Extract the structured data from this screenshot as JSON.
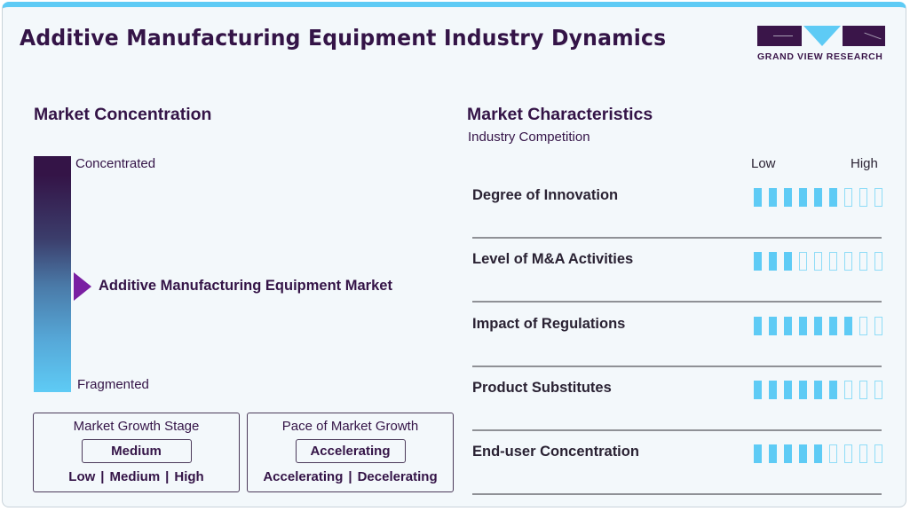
{
  "header": {
    "title": "Additive Manufacturing Equipment Industry Dynamics",
    "logo_text": "GRAND VIEW RESEARCH"
  },
  "colors": {
    "brand_dark": "#341447",
    "accent_blue": "#5ecbf5",
    "marker_purple": "#7a1fa2",
    "background": "#f3f8fb"
  },
  "market_concentration": {
    "title": "Market Concentration",
    "top_label": "Concentrated",
    "bottom_label": "Fragmented",
    "marker_label": "Additive Manufacturing Equipment Market",
    "marker_position": "middle"
  },
  "growth_stage": {
    "title": "Market Growth Stage",
    "selected": "Medium",
    "options": [
      "Low",
      "Medium",
      "High"
    ]
  },
  "growth_pace": {
    "title": "Pace of Market Growth",
    "selected": "Accelerating",
    "options": [
      "Accelerating",
      "Decelerating"
    ]
  },
  "market_characteristics": {
    "title": "Market Characteristics",
    "subtitle": "Industry Competition",
    "scale_low": "Low",
    "scale_high": "High",
    "max_level": 9,
    "rows": [
      {
        "label": "Degree of Innovation",
        "level": 6
      },
      {
        "label": "Level of M&A Activities",
        "level": 3
      },
      {
        "label": "Impact of Regulations",
        "level": 7
      },
      {
        "label": "Product Substitutes",
        "level": 6
      },
      {
        "label": "End-user Concentration",
        "level": 5
      }
    ]
  }
}
